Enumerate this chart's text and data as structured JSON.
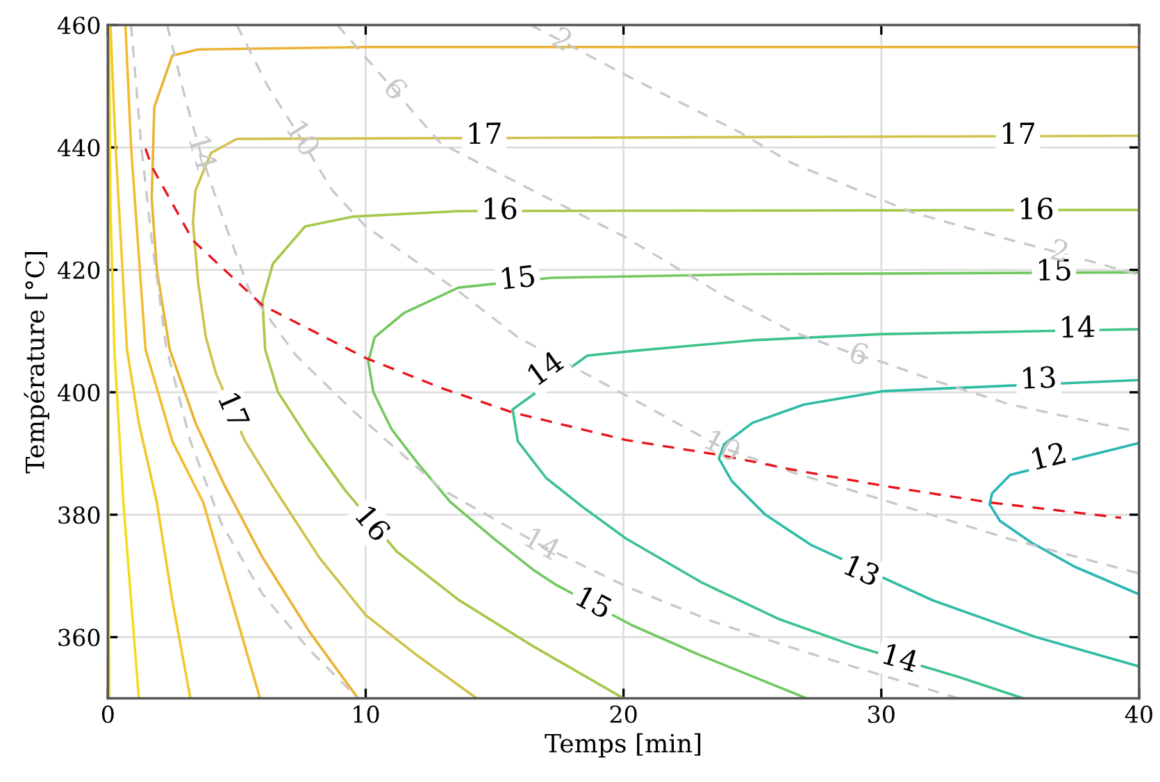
{
  "chart_data": {
    "type": "line",
    "xlabel": "Temps [min]",
    "ylabel": "Température [°C]",
    "xlim": [
      0,
      40
    ],
    "ylim": [
      350,
      460
    ],
    "xticks": [
      0,
      10,
      20,
      30,
      40
    ],
    "yticks": [
      360,
      380,
      400,
      420,
      440,
      460
    ],
    "grid": true,
    "series": [
      {
        "color": "#2ab5b5",
        "x": [
          40,
          35,
          34.3,
          34.2,
          34.6,
          35.8,
          37.5,
          40
        ],
        "values": [
          391.7,
          386.5,
          383.5,
          381.7,
          379,
          375.5,
          371.5,
          367
        ]
      },
      {
        "color": "#2fbca4",
        "x": [
          40,
          30.1,
          27,
          25,
          23.9,
          23.7,
          24.2,
          25.5,
          27.3,
          32,
          36,
          40
        ],
        "values": [
          402,
          400.2,
          398,
          395,
          391.5,
          389.2,
          385.5,
          380,
          375,
          366,
          360,
          355.2
        ]
      },
      {
        "color": "#3cc28c",
        "x": [
          40,
          30,
          25,
          20.5,
          18.6,
          15.7,
          15.9,
          17,
          18.5,
          20.1,
          23,
          26,
          29,
          33,
          35.5
        ],
        "values": [
          410.3,
          409.5,
          408.5,
          406.8,
          406,
          397.2,
          392,
          386,
          381,
          376.1,
          369,
          363,
          358.5,
          353.5,
          350
        ]
      },
      {
        "color": "#72c860",
        "x": [
          40,
          25,
          17.2,
          13.6,
          11.5,
          10.35,
          10.1,
          10.3,
          11,
          12,
          13.3,
          15,
          16.5,
          17.4,
          20.3,
          23,
          27.1
        ],
        "values": [
          419.6,
          419.3,
          418.7,
          417.1,
          413,
          409,
          405,
          400,
          394,
          388.5,
          382,
          376,
          371,
          368.5,
          362,
          357,
          350
        ]
      },
      {
        "color": "#a6c84a",
        "x": [
          40,
          13.6,
          9.5,
          7.65,
          6.4,
          6.0,
          6.1,
          6.6,
          7.8,
          9.2,
          11.2,
          13.6,
          16.5,
          20
        ],
        "values": [
          429.8,
          429.6,
          428.7,
          427.1,
          421,
          414.9,
          407,
          400,
          392.2,
          384,
          374,
          366.1,
          358.5,
          350
        ]
      },
      {
        "color": "#cfc24c",
        "x": [
          40,
          5.0,
          4.0,
          3.4,
          3.3,
          3.5,
          3.8,
          4.2,
          5.3,
          6.5,
          8.2,
          10.0,
          12,
          14.3
        ],
        "values": [
          441.9,
          441.4,
          439.1,
          433,
          427.8,
          418,
          409,
          403,
          392.2,
          384,
          373,
          363.6,
          357,
          350
        ]
      },
      {
        "color": "#e9b434",
        "x": [
          40,
          10,
          3.5,
          2.5,
          1.8,
          1.7,
          1.9,
          2.4,
          3.4,
          4.5,
          6,
          7.8,
          9.7
        ],
        "values": [
          456.4,
          456.4,
          456,
          455,
          446.6,
          431.6,
          420,
          407,
          395,
          385,
          373,
          361,
          350
        ]
      },
      {
        "color": "#f1bc30",
        "x": [
          0.68,
          0.9,
          1.46,
          2.5,
          3.7,
          4.8,
          5.9
        ],
        "values": [
          460,
          440,
          407,
          392,
          382,
          366,
          350
        ]
      },
      {
        "color": "#f3c82a",
        "x": [
          0.1,
          0.3,
          0.74,
          1.2,
          1.9,
          2.5,
          3.2
        ],
        "values": [
          460,
          440,
          407,
          395,
          382,
          366,
          350
        ]
      },
      {
        "color": "#f5da1e",
        "x": [
          0.04,
          0.1,
          0.25,
          0.6,
          0.9,
          1.2
        ],
        "values": [
          460,
          430,
          407,
          382,
          366,
          350
        ]
      },
      {
        "color": "#f8ee10",
        "x": [
          0.01,
          0.02,
          0.05
        ],
        "values": [
          460,
          407,
          350
        ]
      },
      {
        "color": "#c8c8c8",
        "line_style": "dashed",
        "x": [
          16.4,
          17.6,
          20,
          24.5,
          26.5,
          31.2,
          35,
          36.9,
          40
        ],
        "values": [
          460,
          457.4,
          452,
          442.5,
          437.5,
          429.4,
          424.9,
          422.8,
          419.2
        ]
      },
      {
        "color": "#c8c8c8",
        "line_style": "dashed",
        "x": [
          8.9,
          11.1,
          12.9,
          16,
          20,
          24,
          26.5,
          29.1,
          30,
          32,
          35,
          40
        ],
        "values": [
          460,
          449.4,
          440.7,
          434,
          425.5,
          415.5,
          410,
          406,
          405,
          402,
          398,
          393.5
        ]
      },
      {
        "color": "#c8c8c8",
        "line_style": "dashed",
        "x": [
          5.0,
          6.2,
          7.5,
          8.7,
          10,
          13.6,
          15.9,
          20.8,
          23.8,
          26.5,
          30,
          35,
          40
        ],
        "values": [
          460,
          450,
          441.4,
          433,
          427.1,
          416.5,
          409,
          397.9,
          391,
          387,
          382.5,
          376,
          370.4
        ]
      },
      {
        "color": "#c8c8c8",
        "line_style": "dashed",
        "x": [
          2.3,
          3.0,
          3.6,
          4.5,
          5.5,
          7.3,
          9.5,
          13,
          16.8,
          20.2,
          23.5,
          27.1,
          30,
          33
        ],
        "values": [
          460,
          448,
          439.1,
          428,
          416.5,
          406,
          397,
          384,
          375,
          368.1,
          362.5,
          357.5,
          353.8,
          350
        ]
      },
      {
        "color": "#c8c8c8",
        "line_style": "dashed",
        "x": [
          0.9,
          1.3,
          1.7,
          2.26,
          3.2,
          4.4,
          6,
          7.8,
          9.7
        ],
        "values": [
          460,
          440,
          425,
          407.4,
          392,
          378.6,
          367,
          358,
          350
        ]
      },
      {
        "color": "#e8141c",
        "line_style": "dashed",
        "x": [
          1.46,
          1.7,
          3.3,
          6.0,
          10,
          13.0,
          15.7,
          20.1,
          23.8,
          26.5,
          30.1,
          34.2,
          39.3
        ],
        "values": [
          439.8,
          436.9,
          424.8,
          414.2,
          405.6,
          400.6,
          396.7,
          392.2,
          389.7,
          387.4,
          384.7,
          382,
          379.5
        ]
      }
    ],
    "annotations": [
      {
        "text": "12",
        "x": 36.5,
        "y": 389.2
      },
      {
        "text": "13",
        "x": 36.1,
        "y": 402
      },
      {
        "text": "13",
        "x": 29.2,
        "y": 370.6
      },
      {
        "text": "14",
        "x": 37.6,
        "y": 410.3
      },
      {
        "text": "14",
        "x": 17.0,
        "y": 403.6
      },
      {
        "text": "14",
        "x": 30.7,
        "y": 356.3
      },
      {
        "text": "15",
        "x": 36.7,
        "y": 419.6
      },
      {
        "text": "15",
        "x": 15.9,
        "y": 418.4
      },
      {
        "text": "15",
        "x": 18.8,
        "y": 365.4
      },
      {
        "text": "16",
        "x": 36,
        "y": 429.6
      },
      {
        "text": "16",
        "x": 15.2,
        "y": 429.6
      },
      {
        "text": "16",
        "x": 10.2,
        "y": 378.4
      },
      {
        "text": "17",
        "x": 35.3,
        "y": 441.9
      },
      {
        "text": "17",
        "x": 14.6,
        "y": 441.9
      },
      {
        "text": "17",
        "x": 4.8,
        "y": 397
      },
      {
        "text": "2",
        "x": 17.6,
        "y": 457.4
      },
      {
        "text": "2",
        "x": 36.9,
        "y": 422.8
      },
      {
        "text": "6",
        "x": 11.1,
        "y": 449.4
      },
      {
        "text": "6",
        "x": 29.1,
        "y": 406
      },
      {
        "text": "10",
        "x": 7.5,
        "y": 441.4
      },
      {
        "text": "10",
        "x": 23.8,
        "y": 391
      },
      {
        "text": "14",
        "x": 3.6,
        "y": 439.1
      },
      {
        "text": "14",
        "x": 16.8,
        "y": 375
      }
    ]
  }
}
